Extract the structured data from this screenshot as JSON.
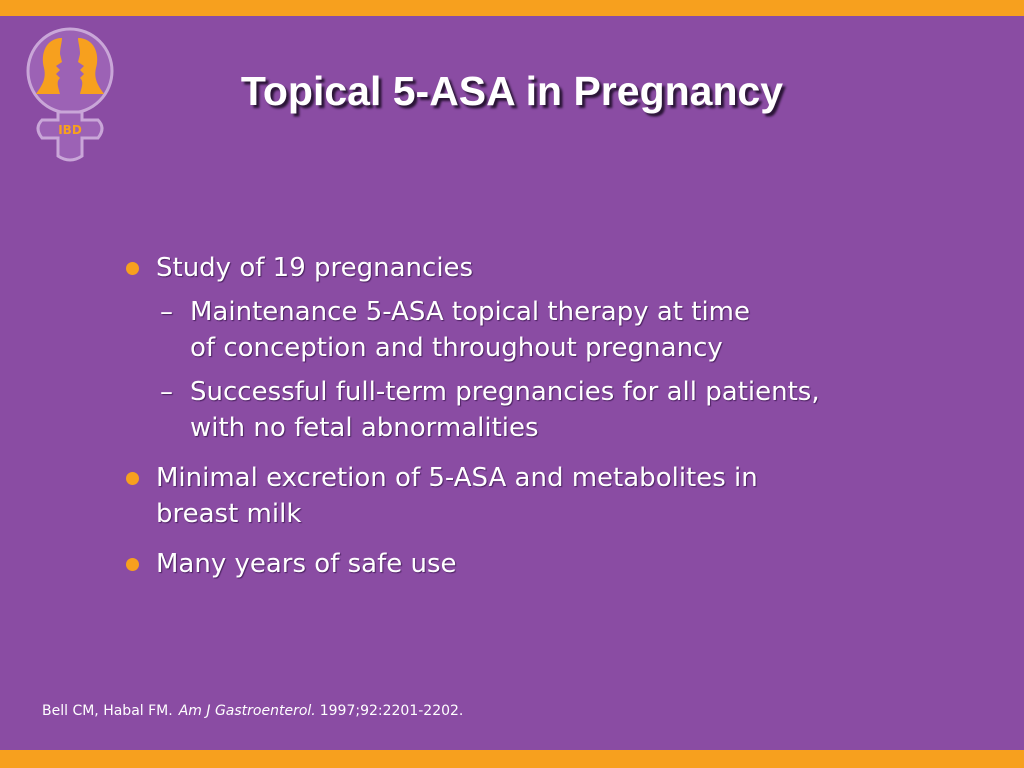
{
  "logo": {
    "label": "IBD"
  },
  "title": "Topical 5-ASA in Pregnancy",
  "bullets": [
    {
      "lines": [
        "Study of 19 pregnancies"
      ],
      "sub": [
        {
          "lines": [
            "Maintenance 5-ASA topical therapy at time",
            "of conception and throughout pregnancy"
          ]
        },
        {
          "lines": [
            "Successful full-term pregnancies for all patients,",
            "with no fetal abnormalities"
          ]
        }
      ]
    },
    {
      "lines": [
        "Minimal excretion of 5-ASA and metabolites in",
        "breast milk"
      ],
      "sub": []
    },
    {
      "lines": [
        "Many years of safe use"
      ],
      "sub": []
    }
  ],
  "reference": {
    "authors": "Bell CM, Habal FM.",
    "journal": "Am J Gastroenterol.",
    "citation": "1997;92:2201-2202."
  }
}
